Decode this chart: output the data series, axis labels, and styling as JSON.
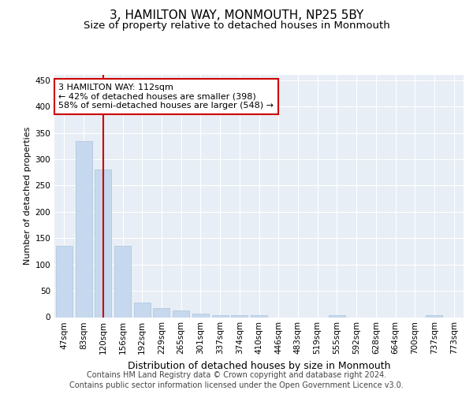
{
  "title": "3, HAMILTON WAY, MONMOUTH, NP25 5BY",
  "subtitle": "Size of property relative to detached houses in Monmouth",
  "xlabel": "Distribution of detached houses by size in Monmouth",
  "ylabel": "Number of detached properties",
  "categories": [
    "47sqm",
    "83sqm",
    "120sqm",
    "156sqm",
    "192sqm",
    "229sqm",
    "265sqm",
    "301sqm",
    "337sqm",
    "374sqm",
    "410sqm",
    "446sqm",
    "483sqm",
    "519sqm",
    "555sqm",
    "592sqm",
    "628sqm",
    "664sqm",
    "700sqm",
    "737sqm",
    "773sqm"
  ],
  "values": [
    135,
    335,
    280,
    135,
    28,
    17,
    12,
    6,
    4,
    3,
    3,
    0,
    0,
    0,
    4,
    0,
    0,
    0,
    0,
    3,
    0
  ],
  "bar_color": "#c5d8ed",
  "bar_edge_color": "#aac4de",
  "vline_x_index": 2,
  "vline_color": "#cc0000",
  "annotation_text": "3 HAMILTON WAY: 112sqm\n← 42% of detached houses are smaller (398)\n58% of semi-detached houses are larger (548) →",
  "annotation_box_color": "#ffffff",
  "annotation_box_edge": "#cc0000",
  "ylim": [
    0,
    460
  ],
  "yticks": [
    0,
    50,
    100,
    150,
    200,
    250,
    300,
    350,
    400,
    450
  ],
  "bg_color": "#e8eef5",
  "grid_color": "#ffffff",
  "footer_line1": "Contains HM Land Registry data © Crown copyright and database right 2024.",
  "footer_line2": "Contains public sector information licensed under the Open Government Licence v3.0.",
  "title_fontsize": 11,
  "subtitle_fontsize": 9.5,
  "xlabel_fontsize": 9,
  "ylabel_fontsize": 8,
  "tick_fontsize": 7.5,
  "annotation_fontsize": 8,
  "footer_fontsize": 7
}
